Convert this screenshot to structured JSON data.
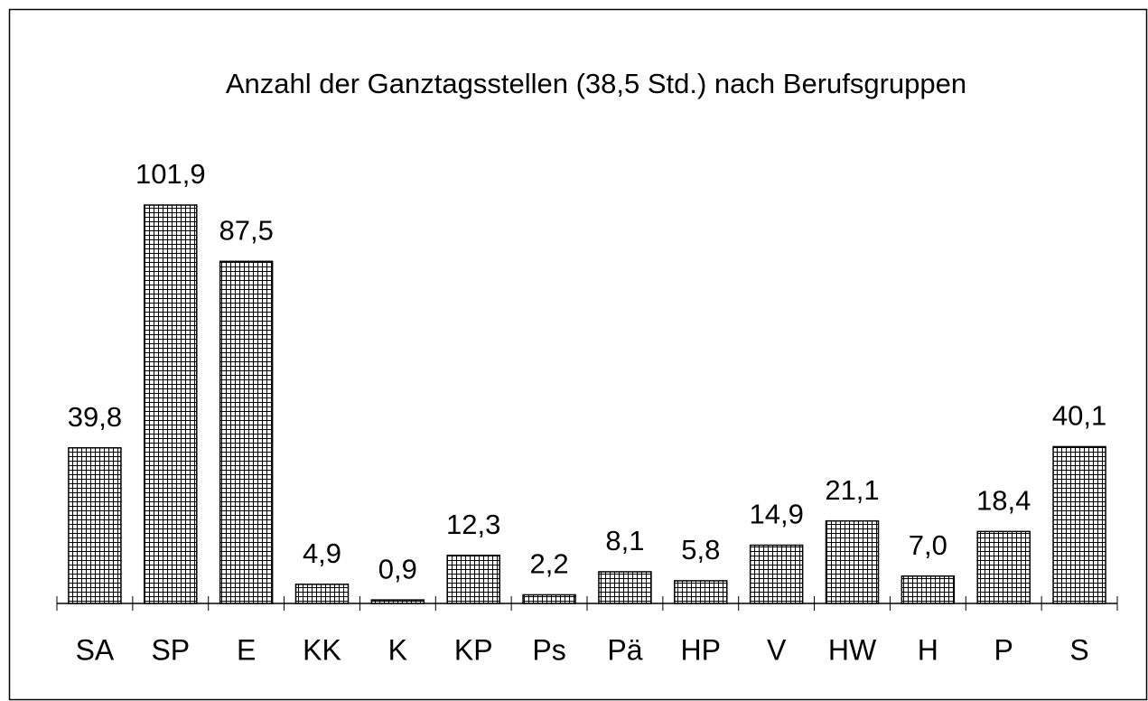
{
  "chart_data": {
    "type": "bar",
    "title": "Anzahl der Ganztagsstellen (38,5 Std.) nach Berufsgruppen",
    "categories": [
      "SA",
      "SP",
      "E",
      "KK",
      "K",
      "KP",
      "Ps",
      "Pä",
      "HP",
      "V",
      "HW",
      "H",
      "P",
      "S"
    ],
    "values": [
      39.8,
      101.9,
      87.5,
      4.9,
      0.9,
      12.3,
      2.2,
      8.1,
      5.8,
      14.9,
      21.1,
      7.0,
      18.4,
      40.1
    ],
    "value_labels": [
      "39,8",
      "101,9",
      "87,5",
      "4,9",
      "0,9",
      "12,3",
      "2,2",
      "8,1",
      "5,8",
      "14,9",
      "21,1",
      "7,0",
      "18,4",
      "40,1"
    ],
    "color": "#000000"
  }
}
